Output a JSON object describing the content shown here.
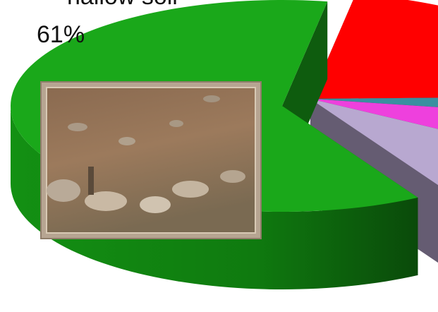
{
  "chart_data": {
    "type": "pie3d",
    "categories": [
      "hallow soil",
      null,
      null,
      null,
      null
    ],
    "values": [
      61,
      22,
      3,
      6,
      8
    ],
    "value_labels": [
      "61%",
      null,
      null,
      null,
      null
    ],
    "colors": [
      "#1aa81a",
      "#ff0000",
      "#3a8fa0",
      "#ee40dd",
      "#b8a8d0"
    ]
  }
}
